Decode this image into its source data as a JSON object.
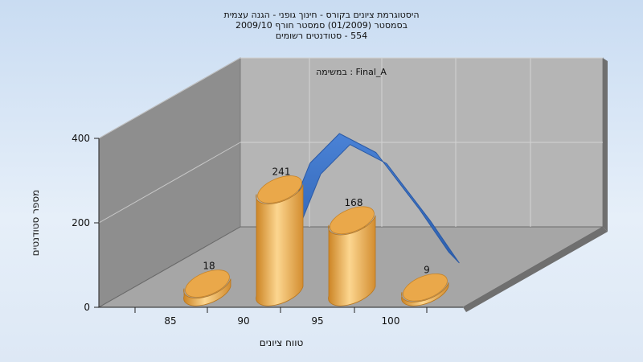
{
  "chart_data": {
    "type": "bar",
    "title_lines": [
      "היסטוגרמת ציונים בקורס - חינוך גופני - הגנה עצמית",
      "בסמסטר  (01/2009)  סמסטר חורף 2009/10",
      "554 - סטודנטים רשומים"
    ],
    "annotation": "במשימה : Final_A",
    "xlabel": "טווח ציונים",
    "ylabel": "מספר סטודנטים",
    "ylim": [
      0,
      400
    ],
    "yticks": [
      0,
      200,
      400
    ],
    "xtick_labels": [
      "85",
      "90",
      "95",
      "100"
    ],
    "categories": [
      "85-90",
      "90-95",
      "95-100",
      "100"
    ],
    "values": [
      18,
      241,
      168,
      9
    ],
    "data_labels": [
      "18",
      "241",
      "168",
      "9"
    ],
    "curve_points": [
      {
        "x": 93,
        "y": 200
      },
      {
        "x": 94.5,
        "y": 330
      },
      {
        "x": 96.5,
        "y": 400
      },
      {
        "x": 99,
        "y": 355
      },
      {
        "x": 102,
        "y": 220
      },
      {
        "x": 104,
        "y": 120
      }
    ],
    "grid": true,
    "colors": {
      "bar": "#f0b257",
      "bar_dark": "#d8902d",
      "bar_light": "#fbd58d",
      "curve": "#3b72c7",
      "curve_dark": "#2f62b3",
      "back_wall": "#b4b4b4",
      "side_wall": "#8c8c8c",
      "floor": "#a4a4a4"
    }
  }
}
